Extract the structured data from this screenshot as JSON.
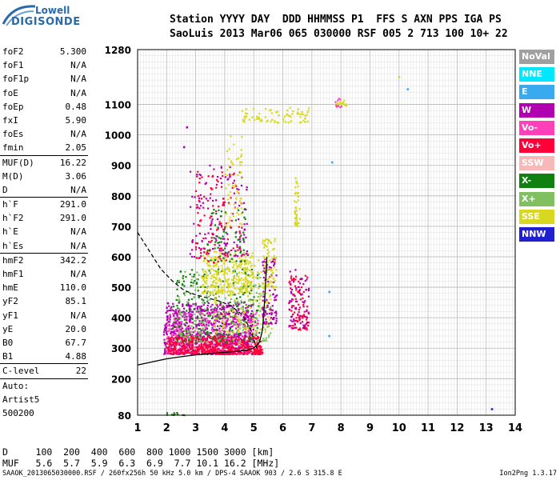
{
  "logo": {
    "line1": "Lowell",
    "line2": "DIGISONDE"
  },
  "header": {
    "row1": "Station YYYY DAY  DDD HHMMSS P1  FFS S AXN PPS IGA PS",
    "row2": "SaoLuis 2013 Mar06 065 030000 RSF 005 2 713 100 10+ 22"
  },
  "params_groups": [
    [
      {
        "key": "foF2",
        "val": "5.300"
      },
      {
        "key": "foF1",
        "val": "N/A"
      },
      {
        "key": "foF1p",
        "val": "N/A"
      },
      {
        "key": "foE",
        "val": "N/A"
      },
      {
        "key": "foEp",
        "val": "0.48"
      },
      {
        "key": "fxI",
        "val": "5.90"
      },
      {
        "key": "foEs",
        "val": "N/A"
      },
      {
        "key": "fmin",
        "val": "2.05"
      }
    ],
    [
      {
        "key": "MUF(D)",
        "val": "16.22"
      },
      {
        "key": "M(D)",
        "val": "3.06"
      },
      {
        "key": "D",
        "val": "N/A"
      }
    ],
    [
      {
        "key": "h`F",
        "val": "291.0"
      },
      {
        "key": "h`F2",
        "val": "291.0"
      },
      {
        "key": "h`E",
        "val": "N/A"
      },
      {
        "key": "h`Es",
        "val": "N/A"
      }
    ],
    [
      {
        "key": "hmF2",
        "val": "342.2"
      },
      {
        "key": "hmF1",
        "val": "N/A"
      },
      {
        "key": "hmE",
        "val": "110.0"
      },
      {
        "key": "yF2",
        "val": "85.1"
      },
      {
        "key": "yF1",
        "val": "N/A"
      },
      {
        "key": "yE",
        "val": "20.0"
      },
      {
        "key": "B0",
        "val": "67.7"
      },
      {
        "key": "B1",
        "val": "4.88"
      }
    ],
    [
      {
        "key": "C-level",
        "val": "22"
      }
    ]
  ],
  "auto_lines": [
    "Auto:",
    "Artist5",
    "500200"
  ],
  "legend": [
    {
      "label": "NoVal",
      "color": "#a0a0a0"
    },
    {
      "label": "NNE",
      "color": "#00e8ff"
    },
    {
      "label": "E",
      "color": "#3aaaf0"
    },
    {
      "label": "W",
      "color": "#b000b0"
    },
    {
      "label": "Vo-",
      "color": "#ff40b8"
    },
    {
      "label": "Vo+",
      "color": "#ff0038"
    },
    {
      "label": "SSW",
      "color": "#f8b8b8"
    },
    {
      "label": "X-",
      "color": "#108010"
    },
    {
      "label": "X+",
      "color": "#80c060"
    },
    {
      "label": "SSE",
      "color": "#d8d820"
    },
    {
      "label": "NNW",
      "color": "#2020d0"
    }
  ],
  "bottom_rows": {
    "d_row": "D     100  200  400  600  800 1000 1500 3000 [km]",
    "muf_row": "MUF   5.6  5.7  5.9  6.3  6.9  7.7 10.1 16.2 [MHz]"
  },
  "footer": "SAAOK_2013065030000.RSF / 260fx256h 50 kHz 5.0 km / DPS-4 SAAOK 903 / 2.6 S 315.8 E",
  "version": "Ion2Png 1.3.17",
  "chart_data": {
    "type": "scatter",
    "xlim": [
      1,
      14
    ],
    "ylim": [
      80,
      1280
    ],
    "x_ticks": [
      1,
      2,
      3,
      4,
      5,
      6,
      7,
      8,
      9,
      10,
      11,
      12,
      13,
      14
    ],
    "y_ticks": [
      80,
      200,
      300,
      400,
      500,
      600,
      700,
      800,
      900,
      1000,
      1100,
      1280
    ],
    "grid": true,
    "legend_position": "right",
    "trace_curve": [
      [
        1.0,
        245
      ],
      [
        1.5,
        255
      ],
      [
        2.0,
        265
      ],
      [
        2.5,
        272
      ],
      [
        3.0,
        278
      ],
      [
        3.5,
        282
      ],
      [
        4.0,
        286
      ],
      [
        4.5,
        290
      ],
      [
        4.8,
        294
      ],
      [
        5.0,
        300
      ],
      [
        5.2,
        320
      ],
      [
        5.3,
        360
      ],
      [
        5.35,
        420
      ],
      [
        5.4,
        500
      ],
      [
        5.45,
        600
      ]
    ],
    "dashed_curve": [
      [
        1.0,
        680
      ],
      [
        1.4,
        620
      ],
      [
        1.8,
        560
      ],
      [
        2.2,
        520
      ],
      [
        2.6,
        490
      ],
      [
        3.0,
        475
      ],
      [
        3.4,
        465
      ],
      [
        3.8,
        455
      ],
      [
        4.2,
        440
      ],
      [
        4.6,
        410
      ],
      [
        4.9,
        360
      ],
      [
        5.1,
        300
      ]
    ],
    "clusters": [
      {
        "color": "#b000b0",
        "x": [
          1.9,
          5.0
        ],
        "y": [
          280,
          450
        ],
        "n": 900
      },
      {
        "color": "#ff40b8",
        "x": [
          2.0,
          5.2
        ],
        "y": [
          280,
          420
        ],
        "n": 300
      },
      {
        "color": "#ff0038",
        "x": [
          2.0,
          5.3
        ],
        "y": [
          280,
          340
        ],
        "n": 500
      },
      {
        "color": "#108010",
        "x": [
          2.2,
          5.2
        ],
        "y": [
          320,
          560
        ],
        "n": 220
      },
      {
        "color": "#80c060",
        "x": [
          2.4,
          5.6
        ],
        "y": [
          320,
          560
        ],
        "n": 220
      },
      {
        "color": "#d8d820",
        "x": [
          3.2,
          5.0
        ],
        "y": [
          480,
          620
        ],
        "n": 280
      },
      {
        "color": "#d8d820",
        "x": [
          3.6,
          5.7
        ],
        "y": [
          350,
          600
        ],
        "n": 160
      },
      {
        "color": "#b000b0",
        "x": [
          2.8,
          4.8
        ],
        "y": [
          600,
          900
        ],
        "n": 140
      },
      {
        "color": "#ff0038",
        "x": [
          3.0,
          4.6
        ],
        "y": [
          580,
          880
        ],
        "n": 110
      },
      {
        "color": "#108010",
        "x": [
          3.4,
          4.8
        ],
        "y": [
          580,
          760
        ],
        "n": 60
      },
      {
        "color": "#d8d820",
        "x": [
          4.0,
          4.6
        ],
        "y": [
          700,
          1000
        ],
        "n": 60
      },
      {
        "color": "#b000b0",
        "x": [
          5.3,
          5.8
        ],
        "y": [
          380,
          600
        ],
        "n": 90
      },
      {
        "color": "#d8d820",
        "x": [
          5.3,
          5.8
        ],
        "y": [
          500,
          660
        ],
        "n": 70
      },
      {
        "color": "#ff0038",
        "x": [
          6.2,
          6.9
        ],
        "y": [
          360,
          540
        ],
        "n": 90
      },
      {
        "color": "#b000b0",
        "x": [
          6.2,
          6.9
        ],
        "y": [
          360,
          560
        ],
        "n": 60
      },
      {
        "color": "#d8d820",
        "x": [
          6.4,
          6.6
        ],
        "y": [
          700,
          860
        ],
        "n": 40
      },
      {
        "color": "#d8d820",
        "x": [
          4.6,
          7.0
        ],
        "y": [
          1040,
          1090
        ],
        "n": 80
      },
      {
        "color": "#d8d820",
        "x": [
          7.8,
          8.2
        ],
        "y": [
          1095,
          1115
        ],
        "n": 20
      },
      {
        "color": "#ff40b8",
        "x": [
          7.8,
          8.1
        ],
        "y": [
          1090,
          1120
        ],
        "n": 10
      },
      {
        "color": "#108010",
        "x": [
          2.0,
          2.7
        ],
        "y": [
          80,
          90
        ],
        "n": 10
      }
    ],
    "scattered_points": [
      {
        "x": 2.7,
        "y": 1025,
        "color": "#b000b0"
      },
      {
        "x": 2.6,
        "y": 960,
        "color": "#b000b0"
      },
      {
        "x": 7.7,
        "y": 910,
        "color": "#3aaaf0"
      },
      {
        "x": 10.0,
        "y": 1190,
        "color": "#d8d820"
      },
      {
        "x": 10.3,
        "y": 1150,
        "color": "#3aaaf0"
      },
      {
        "x": 7.6,
        "y": 340,
        "color": "#3aaaf0"
      },
      {
        "x": 13.2,
        "y": 100,
        "color": "#2020d0"
      },
      {
        "x": 7.6,
        "y": 485,
        "color": "#3aaaf0"
      }
    ]
  }
}
